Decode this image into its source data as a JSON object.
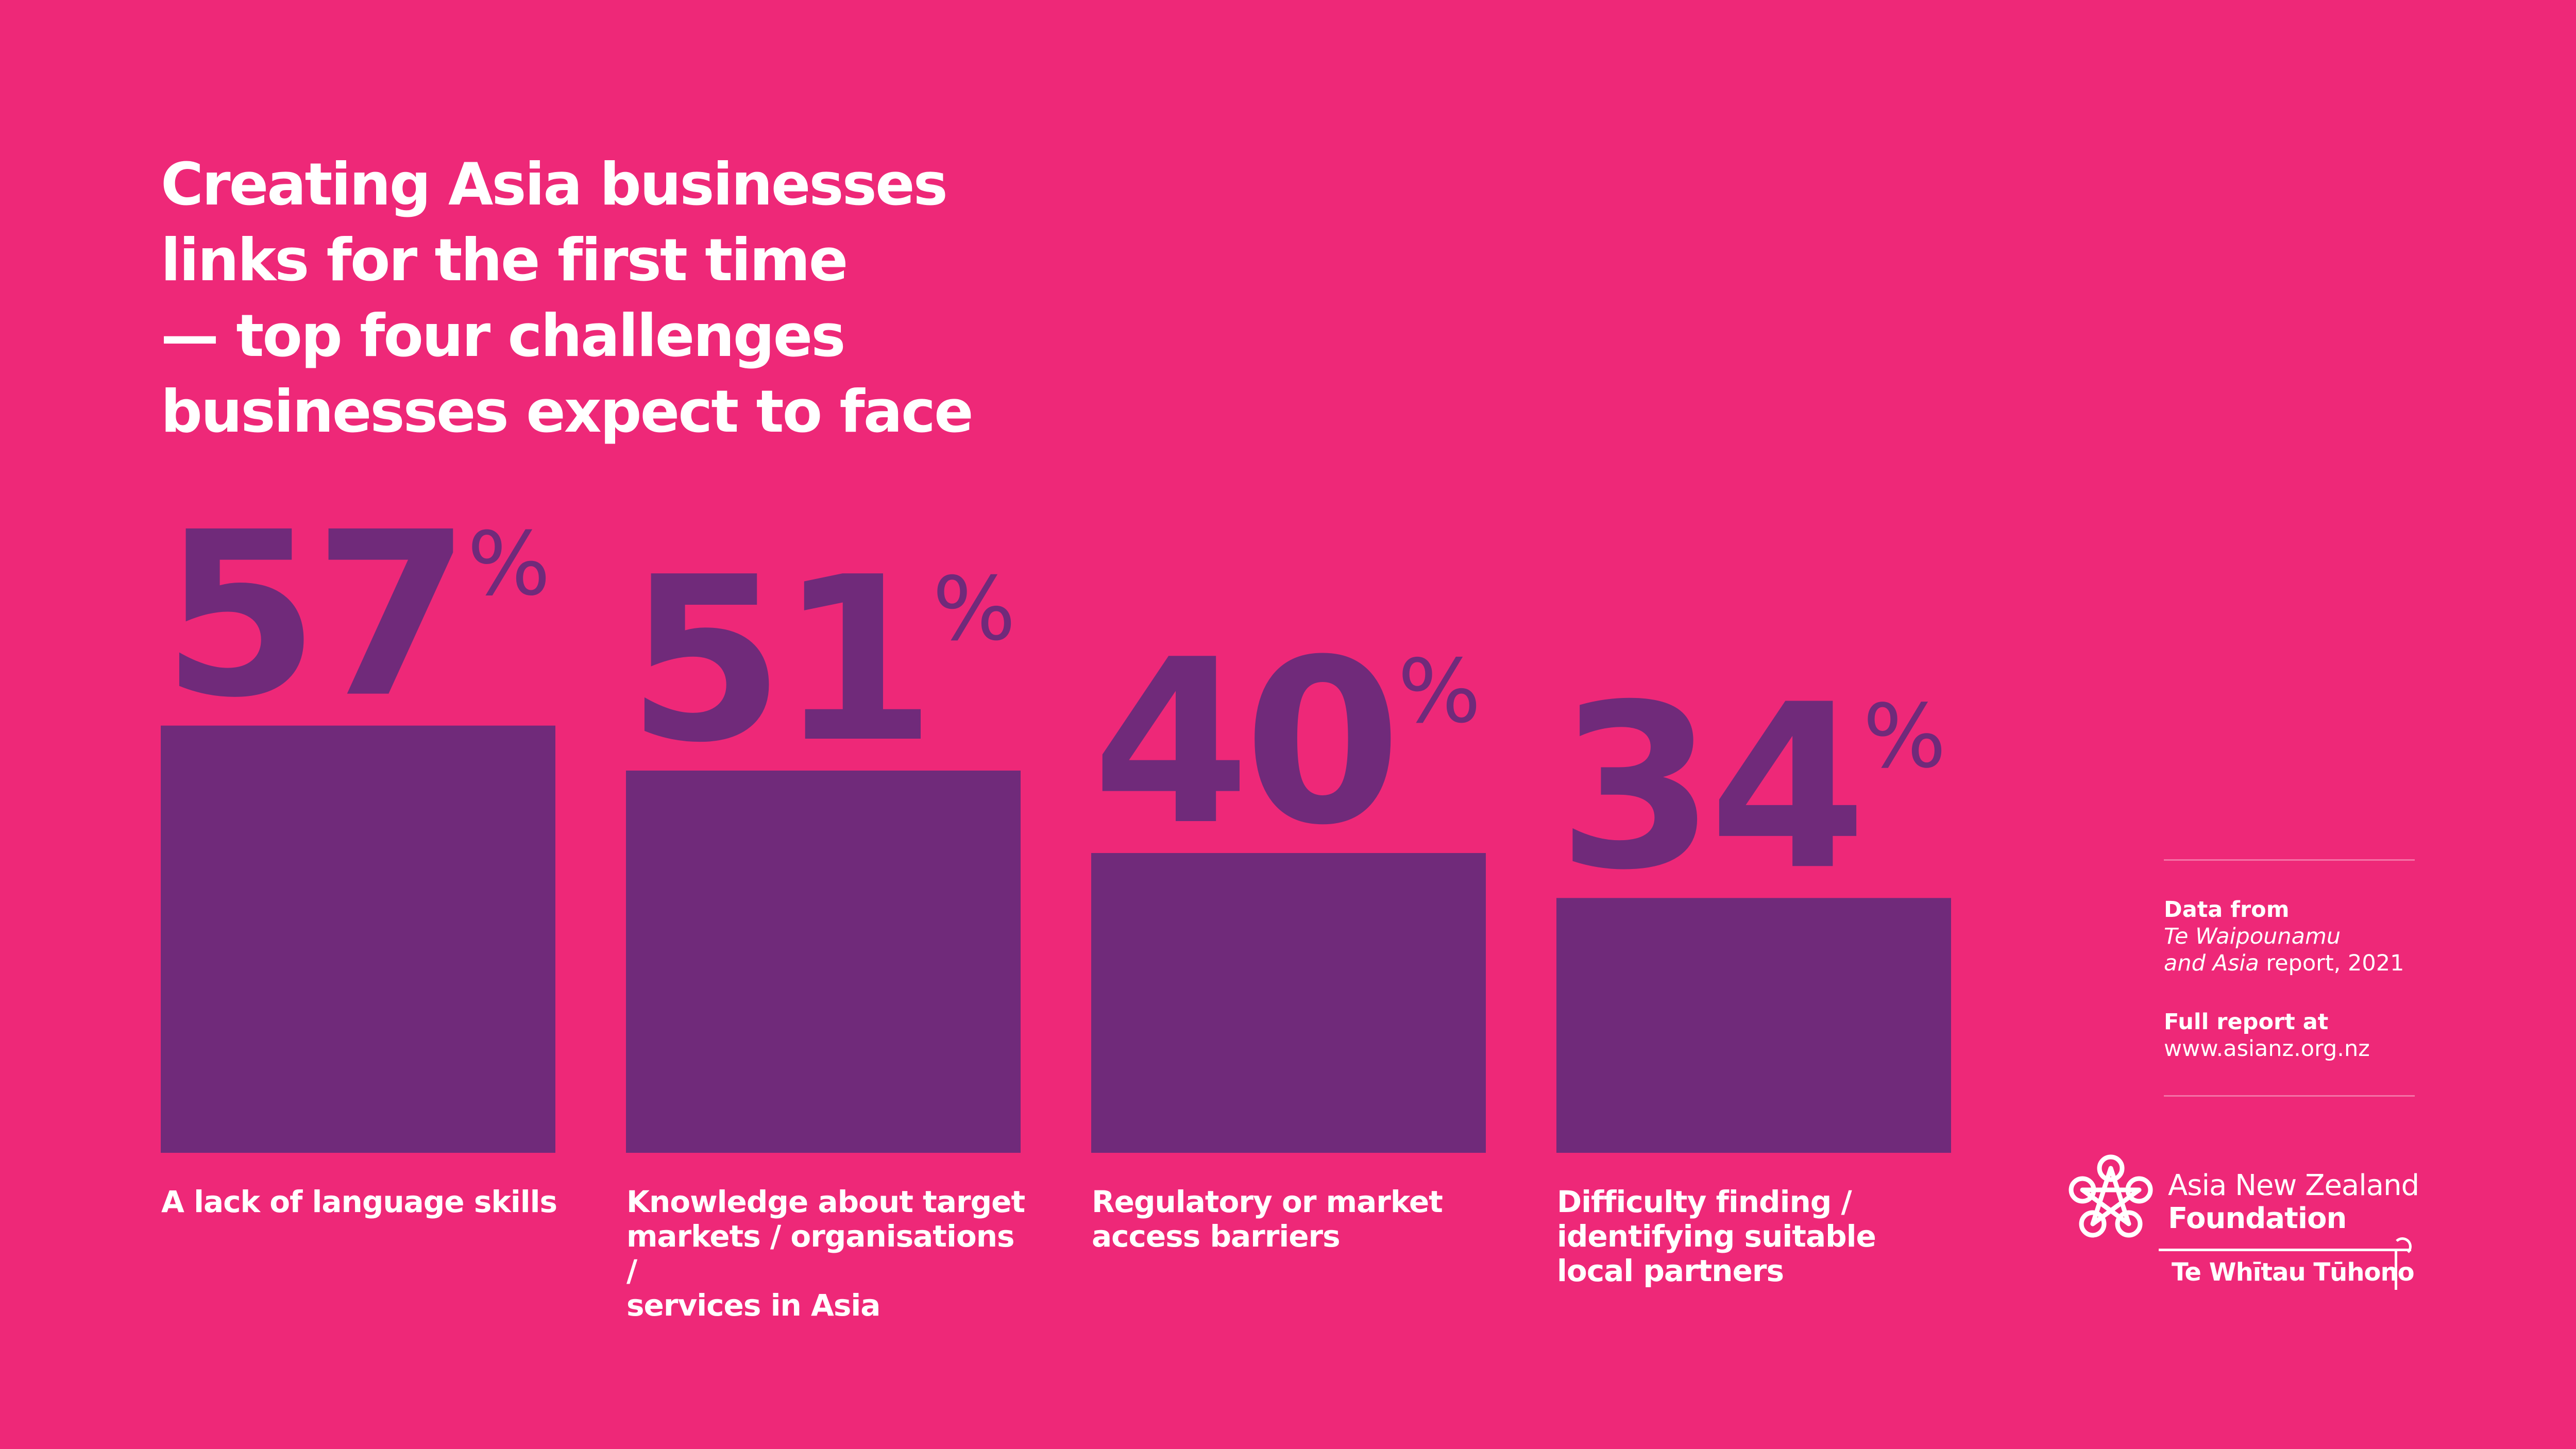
{
  "title_lines": [
    "Creating Asia businesses",
    "links for the first time",
    "— top four challenges",
    "businesses expect to face"
  ],
  "chart_data": {
    "type": "bar",
    "title": "Creating Asia businesses links for the first time — top four challenges businesses expect to face",
    "categories": [
      "A lack of language skills",
      "Knowledge about target markets / organisations / services in Asia",
      "Regulatory or market access barriers",
      "Difficulty finding / identifying suitable local partners"
    ],
    "category_label_lines": [
      [
        "A lack of language skills"
      ],
      [
        "Knowledge about target",
        "markets / organisations /",
        "services in Asia"
      ],
      [
        "Regulatory or market",
        "access barriers"
      ],
      [
        "Difficulty finding /",
        "identifying suitable",
        "local partners"
      ]
    ],
    "values": [
      57,
      51,
      40,
      34
    ],
    "value_suffix": "%",
    "ylim": [
      0,
      100
    ],
    "grid": false,
    "bar_color": "#702a7a",
    "value_color": "#702a7a",
    "background_color": "#ee2878"
  },
  "source": {
    "data_from_label": "Data from",
    "report_name_line1": "Te Waipounamu",
    "report_name_line2": "and Asia",
    "report_suffix": " report, 2021",
    "full_report_label": "Full report at",
    "url": "www.asianz.org.nz"
  },
  "logo": {
    "name_line1": "Asia New Zealand",
    "name_line2": "Foundation",
    "maori_name": "Te Whītau Tūhono",
    "icon": "knot-star-logo-icon"
  }
}
